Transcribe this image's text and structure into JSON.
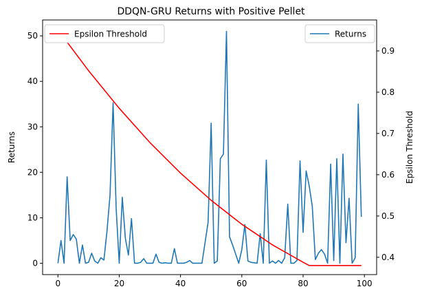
{
  "chart_data": {
    "type": "line",
    "title": "DDQN-GRU Returns with Positive Pellet",
    "ylabel": "Returns",
    "y2label": "Epsilon Threshold",
    "xlim": [
      -5,
      104
    ],
    "ylim": [
      -2.5,
      53.5
    ],
    "y2lim": [
      0.358,
      0.975
    ],
    "xticks": [
      "0",
      "20",
      "40",
      "60",
      "80",
      "100"
    ],
    "yticks": [
      "0",
      "10",
      "20",
      "30",
      "40",
      "50"
    ],
    "y2ticks": [
      "0.4",
      "0.5",
      "0.6",
      "0.7",
      "0.8",
      "0.9"
    ],
    "legend_returns_position": "upper right",
    "legend_epsilon_position": "upper left",
    "series": [
      {
        "name": "Returns",
        "axis": "left",
        "color": "#1f77b4",
        "x": [
          0,
          1,
          2,
          3,
          4,
          5,
          6,
          7,
          8,
          9,
          10,
          11,
          12,
          13,
          14,
          15,
          16,
          17,
          18,
          19,
          20,
          21,
          22,
          23,
          24,
          25,
          26,
          27,
          28,
          29,
          30,
          31,
          32,
          33,
          34,
          35,
          36,
          37,
          38,
          39,
          40,
          41,
          42,
          43,
          44,
          45,
          46,
          47,
          48,
          49,
          50,
          51,
          52,
          53,
          54,
          55,
          56,
          57,
          58,
          59,
          60,
          61,
          62,
          63,
          64,
          65,
          66,
          67,
          68,
          69,
          70,
          71,
          72,
          73,
          74,
          75,
          76,
          77,
          78,
          79,
          80,
          81,
          82,
          83,
          84,
          85,
          86,
          87,
          88,
          89,
          90,
          91,
          92,
          93,
          94,
          95,
          96,
          97,
          98,
          99
        ],
        "values": [
          0,
          5,
          0,
          19,
          5,
          6.3,
          5.3,
          0,
          4,
          0,
          0.2,
          2.2,
          0.5,
          0,
          1.2,
          0.7,
          7,
          15,
          35.3,
          12,
          0,
          14.5,
          5.5,
          1.8,
          9.8,
          0,
          0,
          0.2,
          1,
          0,
          0,
          0,
          2,
          0.2,
          0,
          0.1,
          0,
          0,
          3.2,
          0,
          0,
          0,
          0.2,
          0.6,
          0,
          0,
          0,
          0,
          4.5,
          9,
          30.8,
          0,
          0.5,
          23,
          24,
          51,
          5.8,
          4,
          2,
          0,
          3,
          8.5,
          0.5,
          0.2,
          0.1,
          0,
          6.5,
          0,
          22.7,
          0,
          0.5,
          0,
          0.6,
          0,
          1.2,
          13,
          0,
          0,
          0.6,
          22.5,
          6.8,
          20.3,
          17,
          12.5,
          0.8,
          2.2,
          3,
          2,
          0,
          21.8,
          0.6,
          23,
          0,
          24,
          4.5,
          14.3,
          0,
          1.2,
          35,
          10.2
        ]
      },
      {
        "name": "Epsilon Threshold",
        "axis": "right",
        "color": "#ff0000",
        "x": [
          0,
          10,
          20,
          30,
          40,
          50,
          60,
          70,
          80,
          82,
          83,
          99
        ],
        "values": [
          0.951,
          0.852,
          0.761,
          0.678,
          0.604,
          0.538,
          0.48,
          0.43,
          0.388,
          0.38,
          0.38,
          0.38
        ]
      }
    ]
  }
}
